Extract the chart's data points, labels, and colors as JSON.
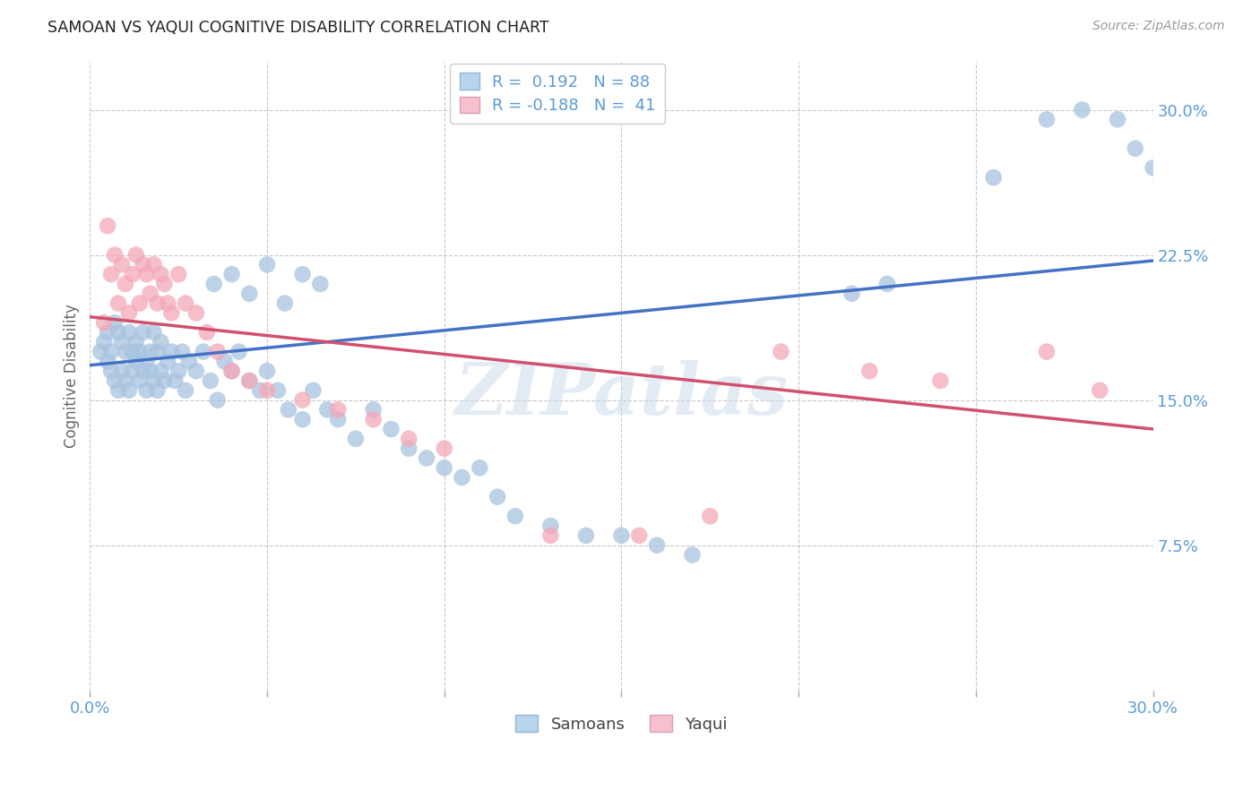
{
  "title": "SAMOAN VS YAQUI COGNITIVE DISABILITY CORRELATION CHART",
  "source": "Source: ZipAtlas.com",
  "ylabel": "Cognitive Disability",
  "xlim": [
    0.0,
    0.3
  ],
  "ylim": [
    0.0,
    0.325
  ],
  "samoans_color": "#a8c4e0",
  "yaqui_color": "#f4a8b8",
  "samoans_line_color": "#4472c4",
  "yaqui_line_color": "#d05070",
  "legend_box_color_samoan": "#b8d4ed",
  "legend_box_color_yaqui": "#f8c0cc",
  "R_samoan": 0.192,
  "N_samoan": 88,
  "R_yaqui": -0.188,
  "N_yaqui": 41,
  "samoan_line_x0": 0.0,
  "samoan_line_y0": 0.168,
  "samoan_line_x1": 0.3,
  "samoan_line_y1": 0.222,
  "yaqui_line_x0": 0.0,
  "yaqui_line_y0": 0.193,
  "yaqui_line_x1": 0.3,
  "yaqui_line_y1": 0.135,
  "samoans_x": [
    0.003,
    0.004,
    0.005,
    0.005,
    0.006,
    0.006,
    0.007,
    0.007,
    0.008,
    0.008,
    0.009,
    0.009,
    0.01,
    0.01,
    0.011,
    0.011,
    0.012,
    0.012,
    0.013,
    0.013,
    0.014,
    0.014,
    0.015,
    0.015,
    0.016,
    0.016,
    0.017,
    0.017,
    0.018,
    0.018,
    0.019,
    0.019,
    0.02,
    0.02,
    0.021,
    0.022,
    0.023,
    0.024,
    0.025,
    0.026,
    0.027,
    0.028,
    0.03,
    0.032,
    0.034,
    0.036,
    0.038,
    0.04,
    0.042,
    0.045,
    0.048,
    0.05,
    0.053,
    0.056,
    0.06,
    0.063,
    0.067,
    0.07,
    0.075,
    0.08,
    0.085,
    0.09,
    0.095,
    0.1,
    0.105,
    0.11,
    0.115,
    0.12,
    0.13,
    0.14,
    0.15,
    0.16,
    0.17,
    0.035,
    0.04,
    0.045,
    0.05,
    0.055,
    0.06,
    0.065,
    0.215,
    0.225,
    0.255,
    0.27,
    0.28,
    0.29,
    0.295,
    0.3
  ],
  "samoans_y": [
    0.175,
    0.18,
    0.17,
    0.185,
    0.165,
    0.175,
    0.16,
    0.19,
    0.155,
    0.185,
    0.165,
    0.18,
    0.16,
    0.175,
    0.155,
    0.185,
    0.165,
    0.175,
    0.17,
    0.18,
    0.16,
    0.175,
    0.165,
    0.185,
    0.155,
    0.17,
    0.165,
    0.175,
    0.16,
    0.185,
    0.155,
    0.175,
    0.165,
    0.18,
    0.16,
    0.17,
    0.175,
    0.16,
    0.165,
    0.175,
    0.155,
    0.17,
    0.165,
    0.175,
    0.16,
    0.15,
    0.17,
    0.165,
    0.175,
    0.16,
    0.155,
    0.165,
    0.155,
    0.145,
    0.14,
    0.155,
    0.145,
    0.14,
    0.13,
    0.145,
    0.135,
    0.125,
    0.12,
    0.115,
    0.11,
    0.115,
    0.1,
    0.09,
    0.085,
    0.08,
    0.08,
    0.075,
    0.07,
    0.21,
    0.215,
    0.205,
    0.22,
    0.2,
    0.215,
    0.21,
    0.205,
    0.21,
    0.265,
    0.295,
    0.3,
    0.295,
    0.28,
    0.27
  ],
  "yaqui_x": [
    0.004,
    0.005,
    0.006,
    0.007,
    0.008,
    0.009,
    0.01,
    0.011,
    0.012,
    0.013,
    0.014,
    0.015,
    0.016,
    0.017,
    0.018,
    0.019,
    0.02,
    0.021,
    0.022,
    0.023,
    0.025,
    0.027,
    0.03,
    0.033,
    0.036,
    0.04,
    0.045,
    0.05,
    0.06,
    0.07,
    0.08,
    0.09,
    0.1,
    0.13,
    0.155,
    0.175,
    0.195,
    0.22,
    0.24,
    0.27,
    0.285
  ],
  "yaqui_y": [
    0.19,
    0.24,
    0.215,
    0.225,
    0.2,
    0.22,
    0.21,
    0.195,
    0.215,
    0.225,
    0.2,
    0.22,
    0.215,
    0.205,
    0.22,
    0.2,
    0.215,
    0.21,
    0.2,
    0.195,
    0.215,
    0.2,
    0.195,
    0.185,
    0.175,
    0.165,
    0.16,
    0.155,
    0.15,
    0.145,
    0.14,
    0.13,
    0.125,
    0.08,
    0.08,
    0.09,
    0.175,
    0.165,
    0.16,
    0.175,
    0.155
  ]
}
